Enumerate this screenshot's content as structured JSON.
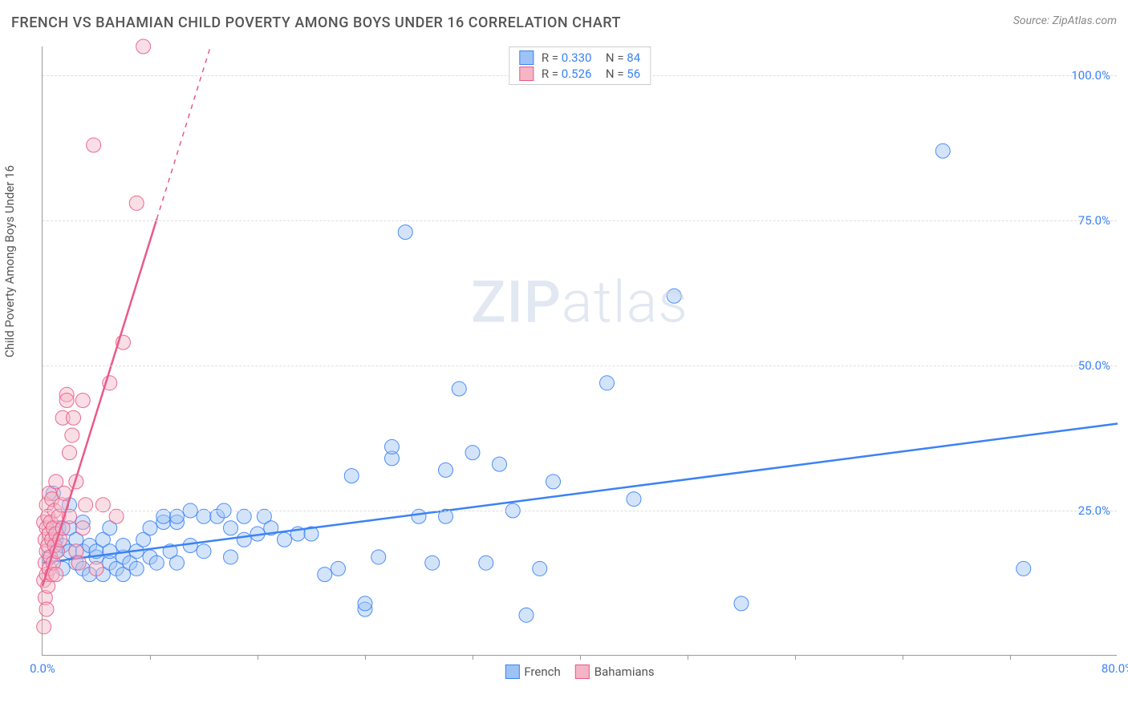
{
  "title": "FRENCH VS BAHAMIAN CHILD POVERTY AMONG BOYS UNDER 16 CORRELATION CHART",
  "source": "Source: ZipAtlas.com",
  "ylabel": "Child Poverty Among Boys Under 16",
  "watermark_bold": "ZIP",
  "watermark_light": "atlas",
  "chart": {
    "type": "scatter",
    "background_color": "#ffffff",
    "grid_color": "#dddddd",
    "axis_color": "#999999",
    "tick_label_color": "#3b82f6",
    "tick_fontsize": 15,
    "xlim": [
      0,
      80
    ],
    "ylim": [
      0,
      105
    ],
    "x_ticks_major": [
      0,
      80
    ],
    "x_ticks_minor": [
      8,
      16,
      24,
      32,
      40,
      48,
      56,
      64,
      72
    ],
    "y_ticks": [
      25,
      50,
      75,
      100
    ],
    "x_tick_labels": {
      "0": "0.0%",
      "80": "80.0%"
    },
    "y_tick_labels": {
      "25": "25.0%",
      "50": "50.0%",
      "75": "75.0%",
      "100": "100.0%"
    },
    "marker_radius": 9,
    "marker_opacity": 0.45,
    "marker_stroke_opacity": 0.9,
    "trendline_width": 2.5,
    "series": [
      {
        "name": "French",
        "color_fill": "#9dc3f5",
        "color_stroke": "#3b82f6",
        "R": "0.330",
        "N": "84",
        "trendline": {
          "x1": 0,
          "y1": 16,
          "x2": 80,
          "y2": 40,
          "dash_after_x": null
        },
        "points": [
          [
            0.5,
            17
          ],
          [
            0.8,
            28
          ],
          [
            1,
            18
          ],
          [
            1,
            20
          ],
          [
            1.2,
            22
          ],
          [
            1.5,
            15
          ],
          [
            1.5,
            19
          ],
          [
            2,
            18
          ],
          [
            2,
            22
          ],
          [
            2,
            26
          ],
          [
            2.5,
            16
          ],
          [
            2.5,
            20
          ],
          [
            3,
            15
          ],
          [
            3,
            18
          ],
          [
            3,
            23
          ],
          [
            3.5,
            14
          ],
          [
            3.5,
            19
          ],
          [
            4,
            17
          ],
          [
            4,
            18
          ],
          [
            4.5,
            14
          ],
          [
            4.5,
            20
          ],
          [
            5,
            16
          ],
          [
            5,
            18
          ],
          [
            5,
            22
          ],
          [
            5.5,
            15
          ],
          [
            6,
            14
          ],
          [
            6,
            17
          ],
          [
            6,
            19
          ],
          [
            6.5,
            16
          ],
          [
            7,
            15
          ],
          [
            7,
            18
          ],
          [
            7.5,
            20
          ],
          [
            8,
            17
          ],
          [
            8,
            22
          ],
          [
            8.5,
            16
          ],
          [
            9,
            23
          ],
          [
            9,
            24
          ],
          [
            9.5,
            18
          ],
          [
            10,
            16
          ],
          [
            10,
            23
          ],
          [
            10,
            24
          ],
          [
            11,
            19
          ],
          [
            11,
            25
          ],
          [
            12,
            18
          ],
          [
            12,
            24
          ],
          [
            13,
            24
          ],
          [
            13.5,
            25
          ],
          [
            14,
            17
          ],
          [
            14,
            22
          ],
          [
            15,
            20
          ],
          [
            15,
            24
          ],
          [
            16,
            21
          ],
          [
            16.5,
            24
          ],
          [
            17,
            22
          ],
          [
            18,
            20
          ],
          [
            19,
            21
          ],
          [
            20,
            21
          ],
          [
            21,
            14
          ],
          [
            22,
            15
          ],
          [
            23,
            31
          ],
          [
            24,
            8
          ],
          [
            24,
            9
          ],
          [
            25,
            17
          ],
          [
            26,
            34
          ],
          [
            26,
            36
          ],
          [
            27,
            73
          ],
          [
            28,
            24
          ],
          [
            29,
            16
          ],
          [
            30,
            24
          ],
          [
            30,
            32
          ],
          [
            31,
            46
          ],
          [
            32,
            35
          ],
          [
            33,
            16
          ],
          [
            34,
            33
          ],
          [
            35,
            25
          ],
          [
            36,
            7
          ],
          [
            37,
            15
          ],
          [
            38,
            30
          ],
          [
            42,
            47
          ],
          [
            44,
            27
          ],
          [
            47,
            62
          ],
          [
            52,
            9
          ],
          [
            67,
            87
          ],
          [
            73,
            15
          ]
        ]
      },
      {
        "name": "Bahamians",
        "color_fill": "#f5b5c5",
        "color_stroke": "#e85a8a",
        "R": "0.526",
        "N": "56",
        "trendline": {
          "x1": 0,
          "y1": 12,
          "x2": 12.5,
          "y2": 105,
          "dash_after_x": 8.5
        },
        "points": [
          [
            0.1,
            5
          ],
          [
            0.1,
            13
          ],
          [
            0.1,
            23
          ],
          [
            0.2,
            10
          ],
          [
            0.2,
            16
          ],
          [
            0.2,
            20
          ],
          [
            0.3,
            8
          ],
          [
            0.3,
            14
          ],
          [
            0.3,
            18
          ],
          [
            0.3,
            22
          ],
          [
            0.3,
            26
          ],
          [
            0.4,
            12
          ],
          [
            0.4,
            19
          ],
          [
            0.4,
            24
          ],
          [
            0.5,
            15
          ],
          [
            0.5,
            21
          ],
          [
            0.5,
            28
          ],
          [
            0.6,
            17
          ],
          [
            0.6,
            23
          ],
          [
            0.7,
            14
          ],
          [
            0.7,
            20
          ],
          [
            0.7,
            27
          ],
          [
            0.8,
            16
          ],
          [
            0.8,
            22
          ],
          [
            0.9,
            19
          ],
          [
            0.9,
            25
          ],
          [
            1,
            14
          ],
          [
            1,
            21
          ],
          [
            1,
            30
          ],
          [
            1.1,
            18
          ],
          [
            1.2,
            24
          ],
          [
            1.3,
            20
          ],
          [
            1.4,
            26
          ],
          [
            1.5,
            22
          ],
          [
            1.5,
            41
          ],
          [
            1.6,
            28
          ],
          [
            1.8,
            45
          ],
          [
            1.8,
            44
          ],
          [
            2,
            24
          ],
          [
            2,
            35
          ],
          [
            2.2,
            38
          ],
          [
            2.3,
            41
          ],
          [
            2.5,
            18
          ],
          [
            2.5,
            30
          ],
          [
            2.7,
            16
          ],
          [
            3,
            22
          ],
          [
            3,
            44
          ],
          [
            3.2,
            26
          ],
          [
            3.8,
            88
          ],
          [
            4,
            15
          ],
          [
            4.5,
            26
          ],
          [
            5,
            47
          ],
          [
            5.5,
            24
          ],
          [
            6,
            54
          ],
          [
            7,
            78
          ],
          [
            7.5,
            105
          ]
        ]
      }
    ]
  },
  "legend_bottom": [
    {
      "label": "French",
      "fill": "#9dc3f5",
      "stroke": "#3b82f6"
    },
    {
      "label": "Bahamians",
      "fill": "#f5b5c5",
      "stroke": "#e85a8a"
    }
  ]
}
